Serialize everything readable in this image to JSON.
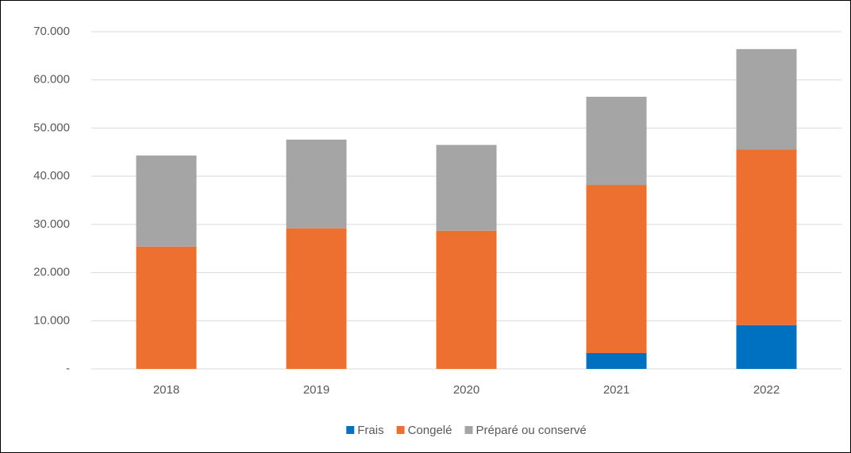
{
  "chart_data": {
    "type": "stacked_bar",
    "categories": [
      "2018",
      "2019",
      "2020",
      "2021",
      "2022"
    ],
    "series": [
      {
        "name": "Frais",
        "color": "#0070c0",
        "values": [
          0,
          0,
          0,
          3300,
          9100
        ]
      },
      {
        "name": "Congelé",
        "color": "#ed7031",
        "values": [
          25400,
          29200,
          28700,
          34900,
          36500
        ]
      },
      {
        "name": "Préparé ou conservé",
        "color": "#a5a5a5",
        "values": [
          18900,
          18400,
          17800,
          18300,
          20800
        ]
      }
    ],
    "ylim": [
      0,
      70000
    ],
    "yticks": [
      {
        "value": 0,
        "label": "-"
      },
      {
        "value": 10000,
        "label": "10.000"
      },
      {
        "value": 20000,
        "label": "20.000"
      },
      {
        "value": 30000,
        "label": "30.000"
      },
      {
        "value": 40000,
        "label": "40.000"
      },
      {
        "value": 50000,
        "label": "50.000"
      },
      {
        "value": 60000,
        "label": "60.000"
      },
      {
        "value": 70000,
        "label": "70.000"
      }
    ],
    "grid": true,
    "legend": "bottom"
  }
}
